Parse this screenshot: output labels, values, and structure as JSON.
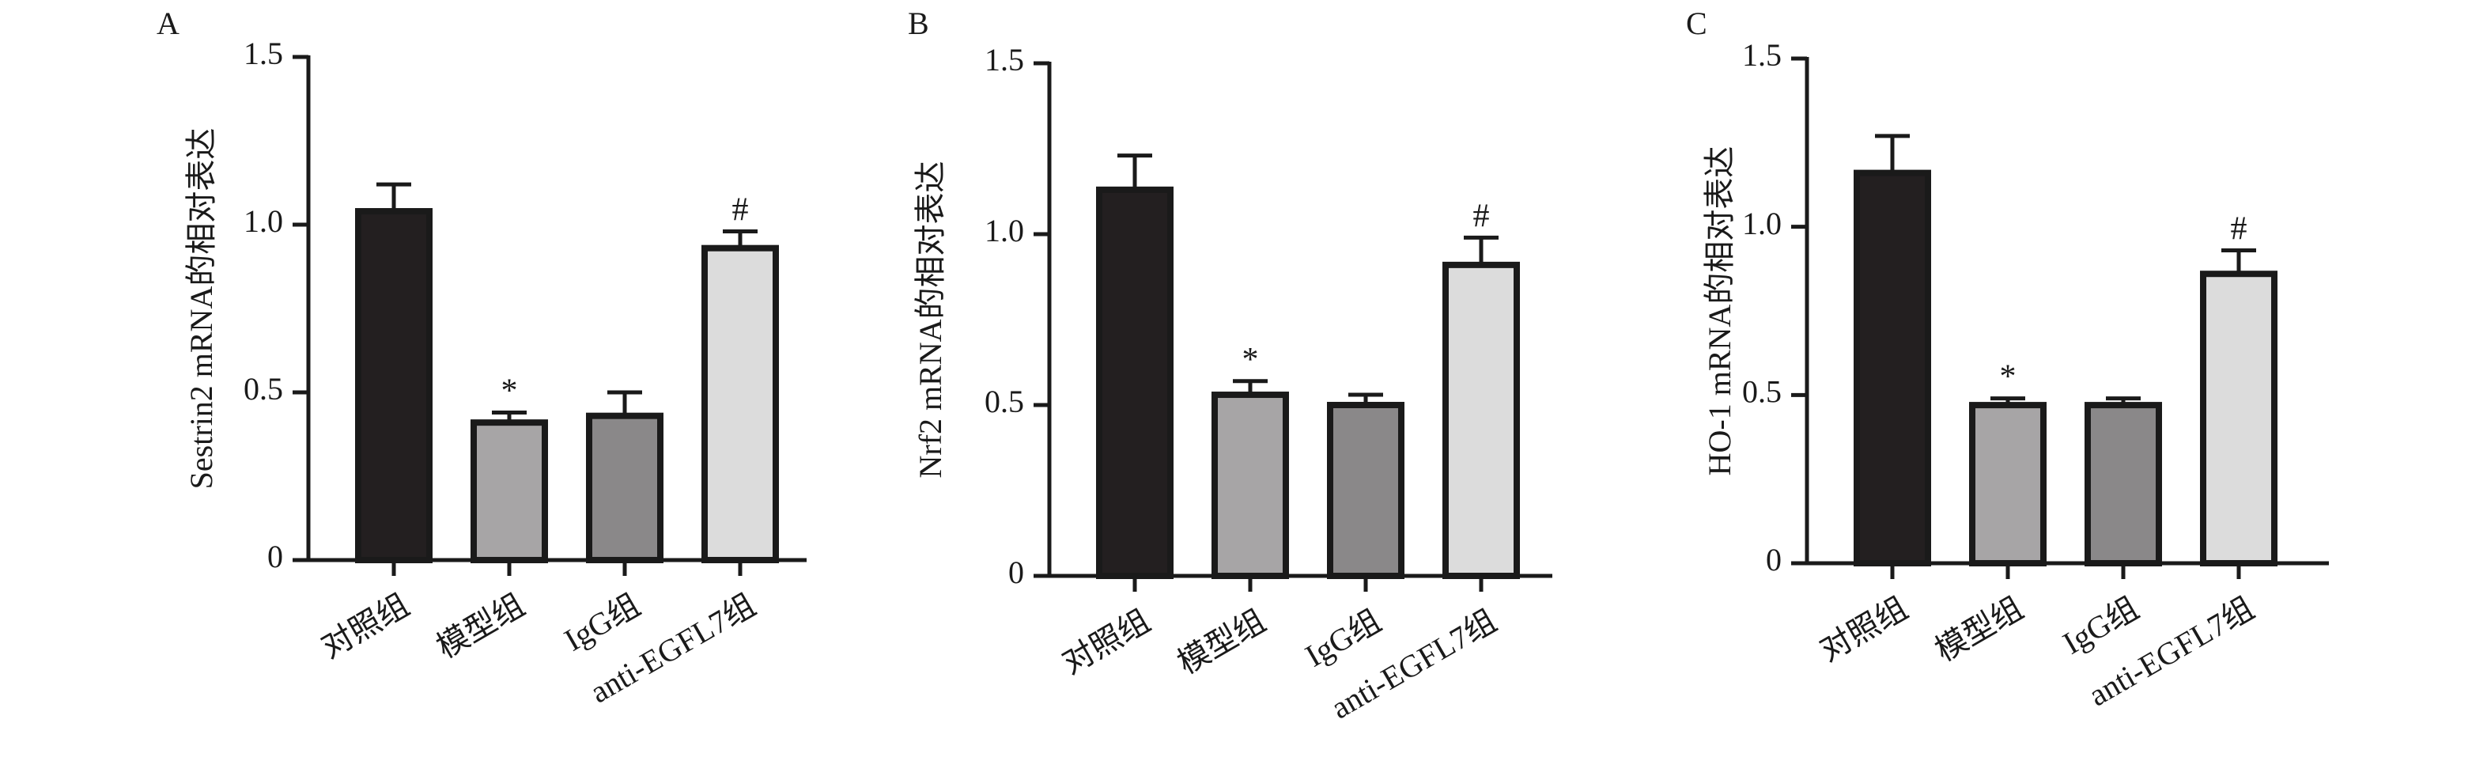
{
  "chart_data": [
    {
      "type": "bar",
      "panel": "A",
      "ylabel": "Sestrin2 mRNA的相对表达",
      "ylim": [
        0,
        1.5
      ],
      "yticks": [
        0,
        0.5,
        1.0,
        1.5
      ],
      "ytick_labels": [
        "0",
        "0.5",
        "1.0",
        "1.5"
      ],
      "categories": [
        "对照组",
        "模型组",
        "IgG组",
        "anti-EGFL7组"
      ],
      "values": [
        1.04,
        0.41,
        0.43,
        0.93
      ],
      "errors": [
        0.08,
        0.03,
        0.07,
        0.05
      ],
      "annotations": [
        "",
        "*",
        "",
        "#"
      ],
      "colors": [
        "#231f20",
        "#a7a5a6",
        "#8a8889",
        "#dcdcdc"
      ]
    },
    {
      "type": "bar",
      "panel": "B",
      "ylabel": "Nrf2 mRNA的相对表达",
      "ylim": [
        0,
        1.5
      ],
      "yticks": [
        0,
        0.5,
        1.0,
        1.5
      ],
      "ytick_labels": [
        "0",
        "0.5",
        "1.0",
        "1.5"
      ],
      "categories": [
        "对照组",
        "模型组",
        "IgG组",
        "anti-EGFL7组"
      ],
      "values": [
        1.13,
        0.53,
        0.5,
        0.91
      ],
      "errors": [
        0.1,
        0.04,
        0.03,
        0.08
      ],
      "annotations": [
        "",
        "*",
        "",
        "#"
      ],
      "colors": [
        "#231f20",
        "#a7a5a6",
        "#8a8889",
        "#dcdcdc"
      ]
    },
    {
      "type": "bar",
      "panel": "C",
      "ylabel": "HO-1 mRNA的相对表达",
      "ylim": [
        0,
        1.5
      ],
      "yticks": [
        0,
        0.5,
        1.0,
        1.5
      ],
      "ytick_labels": [
        "0",
        "0.5",
        "1.0",
        "1.5"
      ],
      "categories": [
        "对照组",
        "模型组",
        "IgG组",
        "anti-EGFL7组"
      ],
      "values": [
        1.16,
        0.47,
        0.47,
        0.86
      ],
      "errors": [
        0.11,
        0.02,
        0.02,
        0.07
      ],
      "annotations": [
        "",
        "*",
        "",
        "#"
      ],
      "colors": [
        "#231f20",
        "#a7a5a6",
        "#8a8889",
        "#dcdcdc"
      ]
    }
  ]
}
